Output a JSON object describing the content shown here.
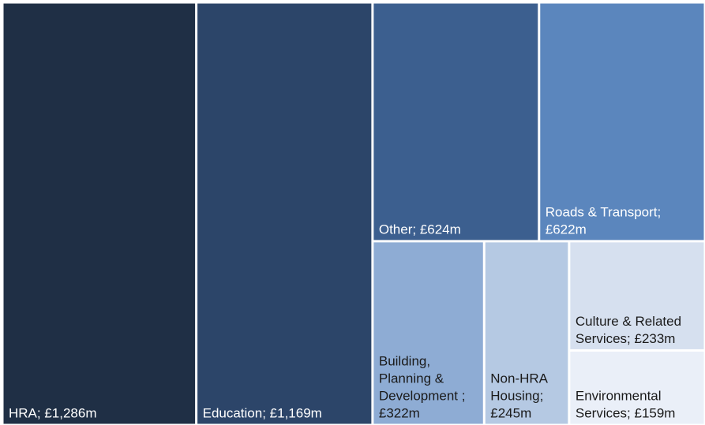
{
  "chart_data": {
    "type": "treemap",
    "values": [
      1286,
      1169,
      624,
      622,
      322,
      245,
      233,
      159
    ],
    "value_labels": [
      "HRA; £1,286m",
      "Education; £1,169m",
      "Other; £624m",
      "Roads & Transport; £622m",
      "Building, Planning & Development ; £322m",
      "Non-HRA Housing; £245m",
      "Culture & Related Services; £233m",
      "Environmental Services; £159m"
    ],
    "colors": [
      "#1f2f45",
      "#2c4569",
      "#3c5f8f",
      "#5b86bd",
      "#8eacd4",
      "#b5c9e3",
      "#d6e0ef",
      "#eaeff8"
    ],
    "label_colors": [
      "#ffffff",
      "#ffffff",
      "#ffffff",
      "#ffffff",
      "#1a1a1a",
      "#1a1a1a",
      "#1a1a1a",
      "#1a1a1a"
    ]
  }
}
